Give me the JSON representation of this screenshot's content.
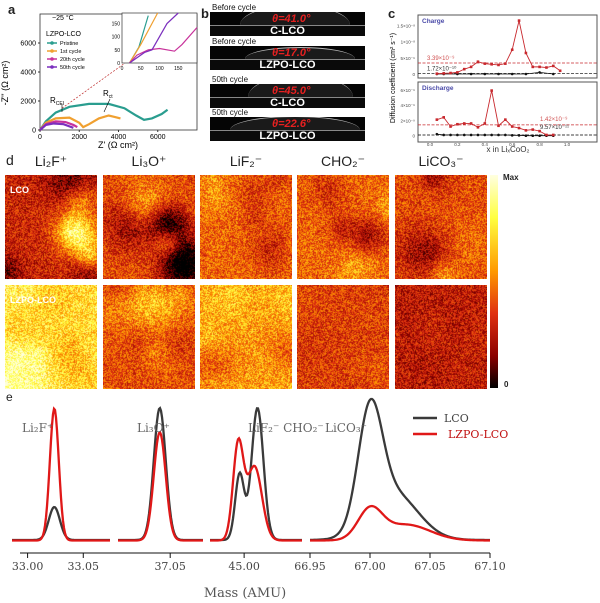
{
  "panels": {
    "a": "a",
    "b": "b",
    "c": "c",
    "d": "d",
    "e": "e"
  },
  "chart_data": [
    {
      "panel": "a",
      "type": "line",
      "title": "",
      "xlabel": "Z' (Ω cm²)",
      "ylabel": "-Z'' (Ω cm²)",
      "xlim": [
        0,
        8000
      ],
      "ylim": [
        0,
        8000
      ],
      "xticks": [
        "0",
        "2000",
        "4000",
        "6000"
      ],
      "yticks": [
        "0",
        "2000",
        "4000",
        "6000"
      ],
      "annotations": {
        "temp": "−25 °C",
        "material": "LZPO-LCO",
        "rcei": "R",
        "rcei_sub": "CEI",
        "rct": "R",
        "rct_sub": "ct"
      },
      "legend": "top-left",
      "series": [
        {
          "name": "Pristine",
          "color": "#2a9d8f",
          "points": [
            [
              0,
              0
            ],
            [
              300,
              600
            ],
            [
              800,
              1200
            ],
            [
              1500,
              1600
            ],
            [
              2500,
              1800
            ],
            [
              3500,
              1800
            ],
            [
              4300,
              1500
            ],
            [
              4900,
              1000
            ],
            [
              5300,
              700
            ],
            [
              5700,
              800
            ],
            [
              6200,
              1100
            ],
            [
              6500,
              1400
            ]
          ]
        },
        {
          "name": "1st cycle",
          "color": "#f0a030",
          "points": [
            [
              0,
              0
            ],
            [
              300,
              500
            ],
            [
              800,
              800
            ],
            [
              1500,
              850
            ],
            [
              2000,
              500
            ],
            [
              2200,
              200
            ],
            [
              2500,
              400
            ],
            [
              3000,
              800
            ],
            [
              3500,
              1000
            ],
            [
              3800,
              900
            ],
            [
              4100,
              800
            ]
          ]
        },
        {
          "name": "20th cycle",
          "color": "#c8329b",
          "points": [
            [
              0,
              0
            ],
            [
              300,
              400
            ],
            [
              800,
              600
            ],
            [
              1300,
              550
            ],
            [
              1700,
              350
            ],
            [
              1900,
              200
            ]
          ]
        },
        {
          "name": "50th cycle",
          "color": "#7b2fbe",
          "points": [
            [
              0,
              0
            ],
            [
              300,
              350
            ],
            [
              700,
              450
            ],
            [
              1200,
              400
            ],
            [
              1500,
              250
            ],
            [
              1700,
              150
            ]
          ]
        }
      ],
      "inset": {
        "xlim": [
          0,
          200
        ],
        "ylim": [
          0,
          190
        ],
        "xticks": [
          "0",
          "50",
          "100",
          "150"
        ],
        "yticks": [
          "0",
          "50",
          "100",
          "150"
        ],
        "series": [
          {
            "name": "Pristine",
            "points": [
              [
                20,
                0
              ],
              [
                45,
                60
              ],
              [
                70,
                180
              ]
            ]
          },
          {
            "name": "1st cycle",
            "points": [
              [
                20,
                0
              ],
              [
                50,
                70
              ],
              [
                95,
                190
              ]
            ]
          },
          {
            "name": "20th cycle",
            "points": [
              [
                20,
                0
              ],
              [
                40,
                30
              ],
              [
                70,
                50
              ],
              [
                100,
                55
              ],
              [
                140,
                45
              ],
              [
                160,
                70
              ],
              [
                200,
                135
              ]
            ]
          },
          {
            "name": "50th cycle",
            "points": [
              [
                20,
                0
              ],
              [
                60,
                40
              ],
              [
                80,
                50
              ],
              [
                120,
                150
              ],
              [
                150,
                190
              ]
            ]
          }
        ]
      }
    },
    {
      "panel": "c",
      "type": "line",
      "xlabel": "x in LiₓCoO₂",
      "ylabel": "Diffusion coefficient (cm² s⁻¹)",
      "xticks": [
        "0.0",
        "0.2",
        "0.4",
        "0.6",
        "0.8",
        "1.0"
      ],
      "xlim": [
        -0.05,
        1.05
      ],
      "subplots": [
        {
          "title": "Charge",
          "ylim": [
            0,
            1.7e-08
          ],
          "yticks": [
            {
              "v": 0,
              "t": "0"
            },
            {
              "v": 5e-09,
              "t": "5×10⁻⁹"
            },
            {
              "v": 1e-08,
              "t": "1×10⁻⁸"
            },
            {
              "v": 1.5e-08,
              "t": "1.5×10⁻⁸"
            }
          ],
          "x": [
            0.05,
            0.1,
            0.15,
            0.2,
            0.25,
            0.3,
            0.35,
            0.4,
            0.45,
            0.5,
            0.55,
            0.6,
            0.65,
            0.7,
            0.75,
            0.8,
            0.85,
            0.9,
            0.95
          ],
          "lzpo": [
            1e-10,
            2e-10,
            3e-10,
            5e-10,
            1.5e-09,
            2.2e-09,
            3.8e-09,
            3.2e-09,
            3e-09,
            2.8e-09,
            3.2e-09,
            7.5e-09,
            1.65e-08,
            6.5e-09,
            2.2e-09,
            2.2e-09,
            2e-09,
            2.5e-09,
            1e-09
          ],
          "lco_x": [
            0.05,
            0.1,
            0.2,
            0.3,
            0.4,
            0.5,
            0.6,
            0.7,
            0.8,
            0.9
          ],
          "lco": [
            0,
            0,
            0,
            0,
            0,
            0,
            0,
            0,
            5e-10,
            0
          ],
          "avg_lzpo": {
            "v": 3.39e-09,
            "t": "3.39×10⁻⁹"
          },
          "avg_lco": {
            "v": 1.72e-10,
            "t": "1.72×10⁻¹⁰"
          }
        },
        {
          "title": "Discharge",
          "ylim": [
            -3e-10,
            6.5e-09
          ],
          "yticks": [
            {
              "v": 0,
              "t": "0"
            },
            {
              "v": 2e-09,
              "t": "2×10⁻⁹"
            },
            {
              "v": 4e-09,
              "t": "4×10⁻⁹"
            },
            {
              "v": 6e-09,
              "t": "6×10⁻⁹"
            }
          ],
          "x": [
            0.05,
            0.1,
            0.15,
            0.2,
            0.25,
            0.3,
            0.35,
            0.4,
            0.45,
            0.5,
            0.55,
            0.6,
            0.65,
            0.7,
            0.75,
            0.8,
            0.85,
            0.9
          ],
          "lzpo": [
            2.1e-09,
            2.4e-09,
            1.2e-09,
            1.5e-09,
            1.6e-09,
            1.6e-09,
            1.1e-09,
            1.6e-09,
            5.9e-09,
            1.3e-09,
            2.1e-09,
            1.2e-09,
            1e-09,
            7e-10,
            8e-10,
            6e-10,
            1e-10,
            1e-10
          ],
          "lco_x": [
            0.05,
            0.1,
            0.15,
            0.2,
            0.25,
            0.3,
            0.35,
            0.4,
            0.45,
            0.5,
            0.55,
            0.6,
            0.65,
            0.7,
            0.75,
            0.8,
            0.85,
            0.9
          ],
          "lco": [
            2e-10,
            1e-10,
            1e-10,
            1e-10,
            1e-10,
            1e-10,
            1e-10,
            1e-10,
            1e-10,
            1e-10,
            1e-10,
            5e-11,
            5e-11,
            0,
            0,
            0,
            0,
            0
          ],
          "avg_lzpo": {
            "v": 1.42e-09,
            "t": "1.42×10⁻⁹"
          },
          "avg_lco": {
            "v": 9.57e-11,
            "t": "9.57×10⁻¹¹"
          }
        }
      ],
      "colors": {
        "lzpo": "#c8282d",
        "lco": "#111111"
      }
    },
    {
      "panel": "e",
      "type": "line",
      "xlabel": "Mass (AMU)",
      "legend": "top-right",
      "series": [
        {
          "name": "LCO",
          "color": "#3a3a3a"
        },
        {
          "name": "LZPO-LCO",
          "color": "#e01818"
        }
      ],
      "tick_labels": [
        "33.00",
        "33.05",
        "37.05",
        "45.00",
        "66.95",
        "67.00",
        "67.05",
        "67.10"
      ],
      "segments": [
        {
          "label": "Li₂F⁺",
          "range": [
            32.986,
            33.074
          ],
          "ticks": [
            33.0,
            33.05
          ],
          "LCO": [
            [
              33.024,
              0.25,
              0.005
            ]
          ],
          "LZPO-LCO": [
            [
              33.024,
              1.0,
              0.004
            ]
          ]
        },
        {
          "label": "Li₃O⁺",
          "range": [
            37.015,
            37.072
          ],
          "ticks": [
            37.05
          ],
          "LCO": [
            [
              37.043,
              1.0,
              0.004
            ]
          ],
          "LZPO-LCO": [
            [
              37.043,
              0.82,
              0.004
            ]
          ]
        },
        {
          "label": "LiF₂⁻  CHO₂⁻",
          "range": [
            44.977,
            45.039
          ],
          "ticks": [
            45.0
          ],
          "LCO": [
            [
              44.997,
              0.5,
              0.003
            ],
            [
              45.009,
              1.0,
              0.004
            ]
          ],
          "LZPO-LCO": [
            [
              44.996,
              0.72,
              0.0035
            ],
            [
              45.007,
              0.56,
              0.005
            ]
          ]
        },
        {
          "label": "LiCO₃⁻",
          "range": [
            66.95,
            67.1
          ],
          "ticks": [
            66.95,
            67.0,
            67.05,
            67.1
          ],
          "LCO": [
            [
              67.0,
              0.85,
              0.01
            ],
            [
              67.02,
              0.35,
              0.02
            ]
          ],
          "LZPO-LCO": [
            [
              67.0,
              0.22,
              0.01
            ],
            [
              67.03,
              0.12,
              0.02
            ]
          ]
        }
      ]
    }
  ],
  "contact_angle": {
    "strips": [
      {
        "caption": "Before cycle",
        "sample": "C-LCO",
        "angle": "θ=41.0°"
      },
      {
        "caption": "Before cycle",
        "sample": "LZPO-LCO",
        "angle": "θ=17.0°"
      },
      {
        "caption": "50th cycle",
        "sample": "C-LCO",
        "angle": "θ=45.0°"
      },
      {
        "caption": "50th cycle",
        "sample": "LZPO-LCO",
        "angle": "θ=22.6°"
      }
    ]
  },
  "tof_sims": {
    "columns": [
      "Li₂F⁺",
      "Li₃O⁺",
      "LiF₂⁻",
      "CHO₂⁻",
      "LiCO₃⁻"
    ],
    "rows": [
      "LCO",
      "LZPO-LCO"
    ],
    "colorbar": {
      "max": "Max",
      "min": "0",
      "colors": [
        "#000000",
        "#8b0000",
        "#e03010",
        "#ff9a00",
        "#ffff40",
        "#ffffe0"
      ]
    }
  }
}
